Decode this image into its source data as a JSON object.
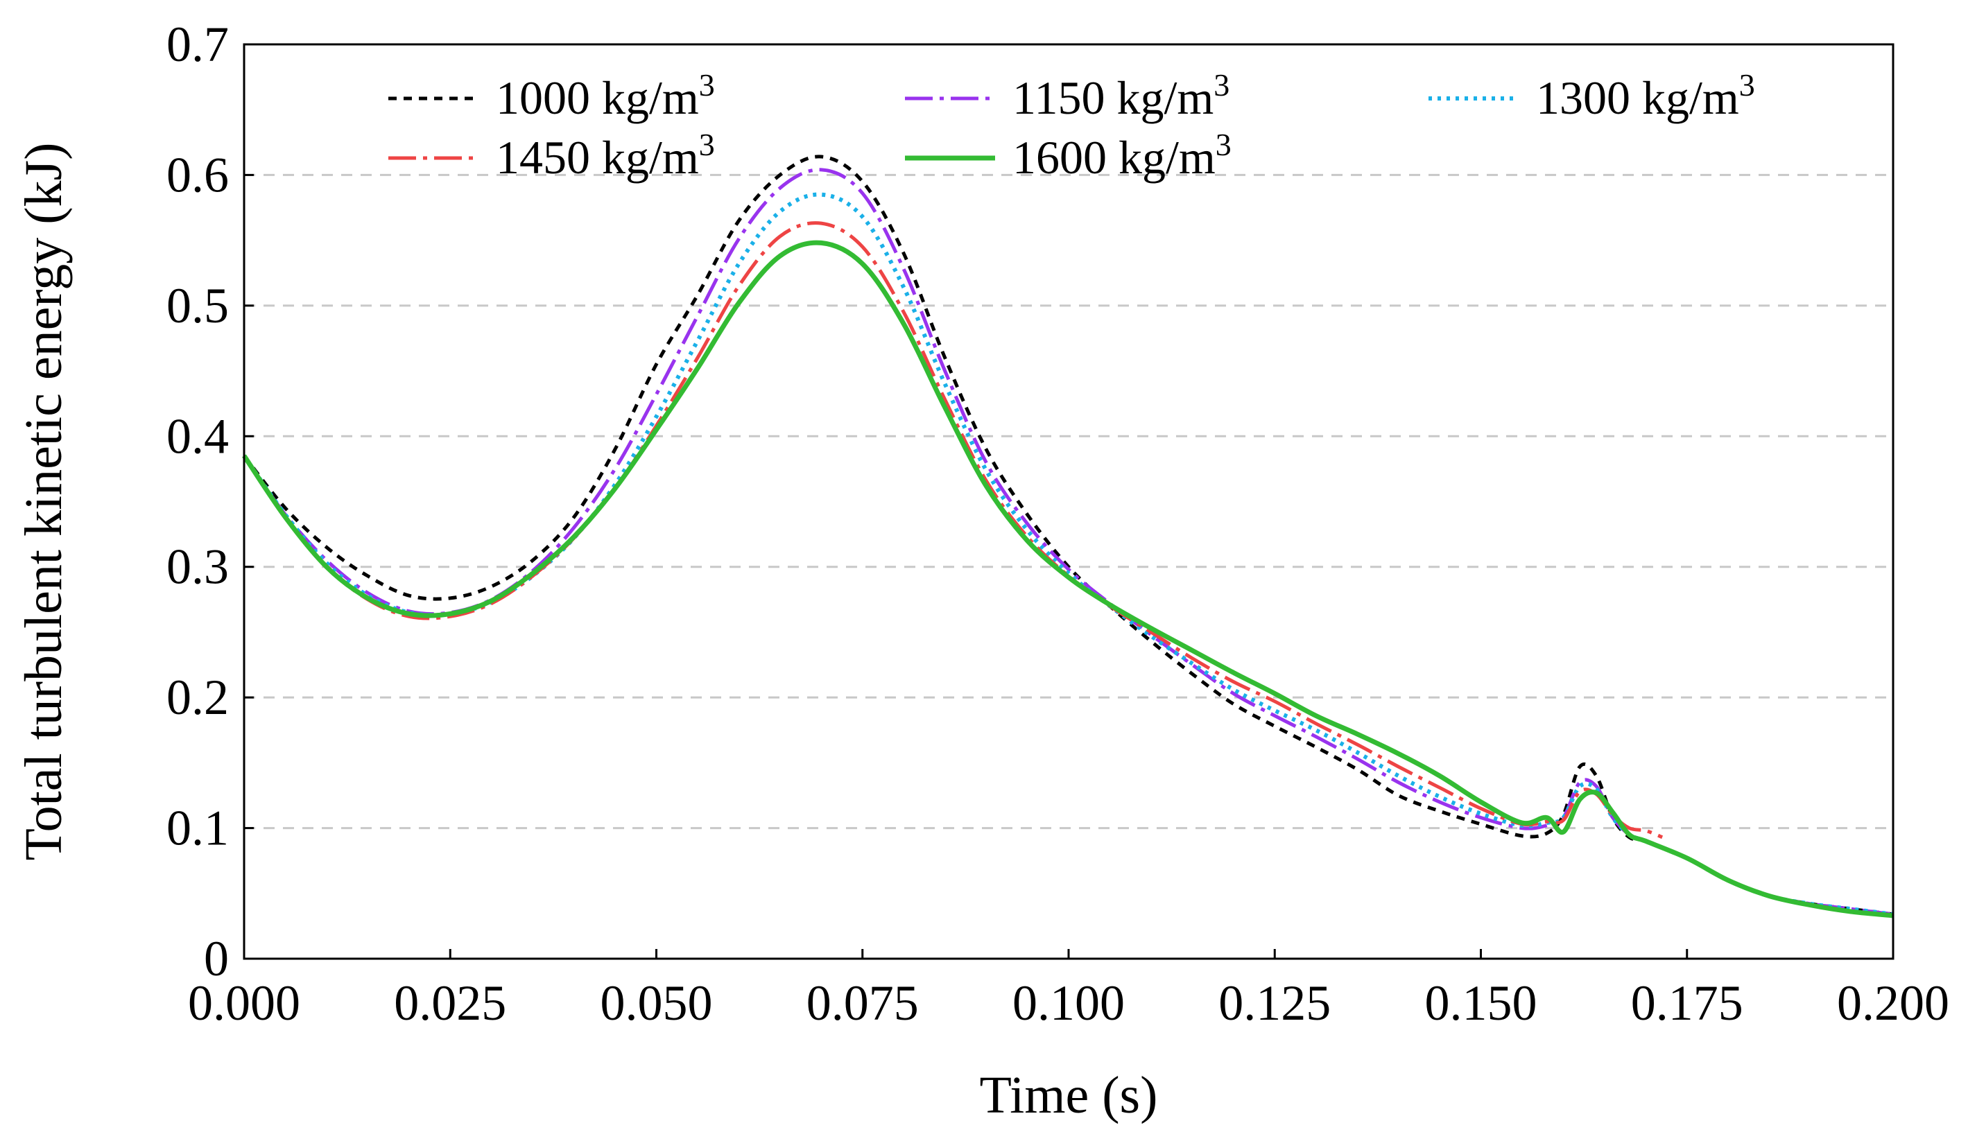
{
  "chart_data": {
    "type": "line",
    "title": "",
    "xlabel": "Time (s)",
    "ylabel": "Total turbulent kinetic energy (kJ)",
    "xlim": [
      0,
      0.2
    ],
    "ylim": [
      0,
      0.7
    ],
    "x_ticks": [
      "0.000",
      "0.025",
      "0.050",
      "0.075",
      "0.100",
      "0.125",
      "0.150",
      "0.175",
      "0.200"
    ],
    "y_ticks": [
      "0",
      "0.1",
      "0.2",
      "0.3",
      "0.4",
      "0.5",
      "0.6",
      "0.7"
    ],
    "grid": "horizontal dashed",
    "legend_position": "top, three columns inside plot",
    "legend_unit": "kg/m",
    "legend_sup": "3",
    "series": [
      {
        "name": "1000 kg/m3",
        "legend_value": "1000",
        "color": "#000000",
        "dash": "12,10",
        "width": 5,
        "points": [
          [
            0,
            0.385
          ],
          [
            0.005,
            0.345
          ],
          [
            0.01,
            0.315
          ],
          [
            0.015,
            0.293
          ],
          [
            0.02,
            0.278
          ],
          [
            0.025,
            0.276
          ],
          [
            0.03,
            0.285
          ],
          [
            0.035,
            0.305
          ],
          [
            0.04,
            0.338
          ],
          [
            0.045,
            0.39
          ],
          [
            0.05,
            0.455
          ],
          [
            0.055,
            0.508
          ],
          [
            0.06,
            0.565
          ],
          [
            0.065,
            0.6
          ],
          [
            0.07,
            0.614
          ],
          [
            0.075,
            0.595
          ],
          [
            0.08,
            0.54
          ],
          [
            0.085,
            0.46
          ],
          [
            0.09,
            0.39
          ],
          [
            0.095,
            0.34
          ],
          [
            0.1,
            0.3
          ],
          [
            0.105,
            0.27
          ],
          [
            0.11,
            0.243
          ],
          [
            0.115,
            0.218
          ],
          [
            0.12,
            0.195
          ],
          [
            0.125,
            0.178
          ],
          [
            0.13,
            0.162
          ],
          [
            0.135,
            0.145
          ],
          [
            0.14,
            0.125
          ],
          [
            0.145,
            0.113
          ],
          [
            0.15,
            0.103
          ],
          [
            0.155,
            0.094
          ],
          [
            0.158,
            0.096
          ],
          [
            0.16,
            0.11
          ],
          [
            0.162,
            0.147
          ],
          [
            0.164,
            0.14
          ],
          [
            0.166,
            0.108
          ],
          [
            0.168,
            0.093
          ],
          [
            0.17,
            0.09
          ],
          [
            0.175,
            0.077
          ],
          [
            0.18,
            0.06
          ],
          [
            0.185,
            0.048
          ],
          [
            0.19,
            0.042
          ],
          [
            0.195,
            0.038
          ],
          [
            0.2,
            0.034
          ]
        ]
      },
      {
        "name": "1150 kg/m3",
        "legend_value": "1150",
        "color": "#9933ee",
        "dash": "40,10,6,10",
        "width": 5,
        "points": [
          [
            0,
            0.385
          ],
          [
            0.005,
            0.34
          ],
          [
            0.01,
            0.305
          ],
          [
            0.015,
            0.28
          ],
          [
            0.02,
            0.266
          ],
          [
            0.025,
            0.265
          ],
          [
            0.03,
            0.275
          ],
          [
            0.035,
            0.297
          ],
          [
            0.04,
            0.33
          ],
          [
            0.045,
            0.375
          ],
          [
            0.05,
            0.432
          ],
          [
            0.055,
            0.492
          ],
          [
            0.06,
            0.551
          ],
          [
            0.065,
            0.59
          ],
          [
            0.07,
            0.604
          ],
          [
            0.075,
            0.586
          ],
          [
            0.08,
            0.528
          ],
          [
            0.085,
            0.45
          ],
          [
            0.09,
            0.38
          ],
          [
            0.095,
            0.333
          ],
          [
            0.1,
            0.298
          ],
          [
            0.105,
            0.272
          ],
          [
            0.11,
            0.248
          ],
          [
            0.115,
            0.225
          ],
          [
            0.12,
            0.203
          ],
          [
            0.125,
            0.186
          ],
          [
            0.13,
            0.17
          ],
          [
            0.135,
            0.153
          ],
          [
            0.14,
            0.135
          ],
          [
            0.145,
            0.12
          ],
          [
            0.15,
            0.108
          ],
          [
            0.155,
            0.1
          ],
          [
            0.158,
            0.102
          ],
          [
            0.16,
            0.108
          ],
          [
            0.162,
            0.135
          ],
          [
            0.164,
            0.132
          ],
          [
            0.166,
            0.108
          ],
          [
            0.168,
            0.095
          ],
          [
            0.17,
            0.09
          ],
          [
            0.175,
            0.077
          ],
          [
            0.18,
            0.06
          ],
          [
            0.185,
            0.048
          ],
          [
            0.19,
            0.042
          ],
          [
            0.195,
            0.038
          ],
          [
            0.2,
            0.034
          ]
        ]
      },
      {
        "name": "1300 kg/m3",
        "legend_value": "1300",
        "color": "#1ab0e8",
        "dash": "5,8",
        "width": 6,
        "points": [
          [
            0,
            0.385
          ],
          [
            0.005,
            0.34
          ],
          [
            0.01,
            0.303
          ],
          [
            0.015,
            0.278
          ],
          [
            0.02,
            0.265
          ],
          [
            0.025,
            0.264
          ],
          [
            0.03,
            0.273
          ],
          [
            0.035,
            0.293
          ],
          [
            0.04,
            0.322
          ],
          [
            0.045,
            0.363
          ],
          [
            0.05,
            0.415
          ],
          [
            0.055,
            0.473
          ],
          [
            0.06,
            0.532
          ],
          [
            0.065,
            0.572
          ],
          [
            0.07,
            0.585
          ],
          [
            0.075,
            0.568
          ],
          [
            0.08,
            0.514
          ],
          [
            0.085,
            0.44
          ],
          [
            0.09,
            0.374
          ],
          [
            0.095,
            0.328
          ],
          [
            0.1,
            0.295
          ],
          [
            0.105,
            0.27
          ],
          [
            0.11,
            0.247
          ],
          [
            0.115,
            0.226
          ],
          [
            0.12,
            0.206
          ],
          [
            0.125,
            0.19
          ],
          [
            0.13,
            0.175
          ],
          [
            0.135,
            0.158
          ],
          [
            0.14,
            0.14
          ],
          [
            0.145,
            0.124
          ],
          [
            0.15,
            0.111
          ],
          [
            0.155,
            0.102
          ],
          [
            0.158,
            0.104
          ],
          [
            0.16,
            0.108
          ],
          [
            0.162,
            0.132
          ],
          [
            0.164,
            0.13
          ],
          [
            0.166,
            0.108
          ],
          [
            0.168,
            0.095
          ],
          [
            0.17,
            0.09
          ],
          [
            0.175,
            0.077
          ],
          [
            0.18,
            0.06
          ],
          [
            0.185,
            0.048
          ],
          [
            0.19,
            0.042
          ],
          [
            0.195,
            0.038
          ],
          [
            0.2,
            0.034
          ]
        ]
      },
      {
        "name": "1450 kg/m3",
        "legend_value": "1450",
        "color": "#ee4444",
        "dash": "40,10,6,10",
        "width": 5,
        "points": [
          [
            0,
            0.385
          ],
          [
            0.005,
            0.338
          ],
          [
            0.01,
            0.3
          ],
          [
            0.015,
            0.275
          ],
          [
            0.02,
            0.262
          ],
          [
            0.025,
            0.262
          ],
          [
            0.03,
            0.272
          ],
          [
            0.035,
            0.293
          ],
          [
            0.04,
            0.322
          ],
          [
            0.045,
            0.36
          ],
          [
            0.05,
            0.408
          ],
          [
            0.055,
            0.46
          ],
          [
            0.06,
            0.515
          ],
          [
            0.065,
            0.553
          ],
          [
            0.07,
            0.563
          ],
          [
            0.075,
            0.545
          ],
          [
            0.08,
            0.495
          ],
          [
            0.085,
            0.428
          ],
          [
            0.09,
            0.366
          ],
          [
            0.095,
            0.323
          ],
          [
            0.1,
            0.293
          ],
          [
            0.105,
            0.27
          ],
          [
            0.11,
            0.25
          ],
          [
            0.115,
            0.23
          ],
          [
            0.12,
            0.212
          ],
          [
            0.125,
            0.197
          ],
          [
            0.13,
            0.18
          ],
          [
            0.135,
            0.164
          ],
          [
            0.14,
            0.147
          ],
          [
            0.145,
            0.131
          ],
          [
            0.15,
            0.115
          ],
          [
            0.155,
            0.103
          ],
          [
            0.158,
            0.105
          ],
          [
            0.16,
            0.106
          ],
          [
            0.162,
            0.128
          ],
          [
            0.164,
            0.126
          ],
          [
            0.166,
            0.11
          ],
          [
            0.168,
            0.1
          ],
          [
            0.17,
            0.098
          ],
          [
            0.172,
            0.093
          ]
        ]
      },
      {
        "name": "1600 kg/m3",
        "legend_value": "1600",
        "color": "#33bb33",
        "dash": "",
        "width": 7,
        "points": [
          [
            0,
            0.385
          ],
          [
            0.005,
            0.338
          ],
          [
            0.01,
            0.3
          ],
          [
            0.015,
            0.276
          ],
          [
            0.02,
            0.264
          ],
          [
            0.025,
            0.264
          ],
          [
            0.03,
            0.274
          ],
          [
            0.035,
            0.295
          ],
          [
            0.04,
            0.323
          ],
          [
            0.045,
            0.36
          ],
          [
            0.05,
            0.405
          ],
          [
            0.055,
            0.452
          ],
          [
            0.06,
            0.502
          ],
          [
            0.065,
            0.538
          ],
          [
            0.07,
            0.548
          ],
          [
            0.075,
            0.532
          ],
          [
            0.08,
            0.486
          ],
          [
            0.085,
            0.422
          ],
          [
            0.09,
            0.362
          ],
          [
            0.095,
            0.32
          ],
          [
            0.1,
            0.292
          ],
          [
            0.105,
            0.271
          ],
          [
            0.11,
            0.253
          ],
          [
            0.115,
            0.236
          ],
          [
            0.12,
            0.219
          ],
          [
            0.125,
            0.203
          ],
          [
            0.13,
            0.186
          ],
          [
            0.135,
            0.172
          ],
          [
            0.14,
            0.157
          ],
          [
            0.145,
            0.14
          ],
          [
            0.15,
            0.12
          ],
          [
            0.155,
            0.104
          ],
          [
            0.158,
            0.108
          ],
          [
            0.16,
            0.097
          ],
          [
            0.162,
            0.122
          ],
          [
            0.164,
            0.127
          ],
          [
            0.166,
            0.112
          ],
          [
            0.168,
            0.095
          ],
          [
            0.17,
            0.09
          ],
          [
            0.175,
            0.077
          ],
          [
            0.18,
            0.06
          ],
          [
            0.185,
            0.048
          ],
          [
            0.19,
            0.041
          ],
          [
            0.195,
            0.036
          ],
          [
            0.2,
            0.033
          ]
        ]
      }
    ]
  }
}
